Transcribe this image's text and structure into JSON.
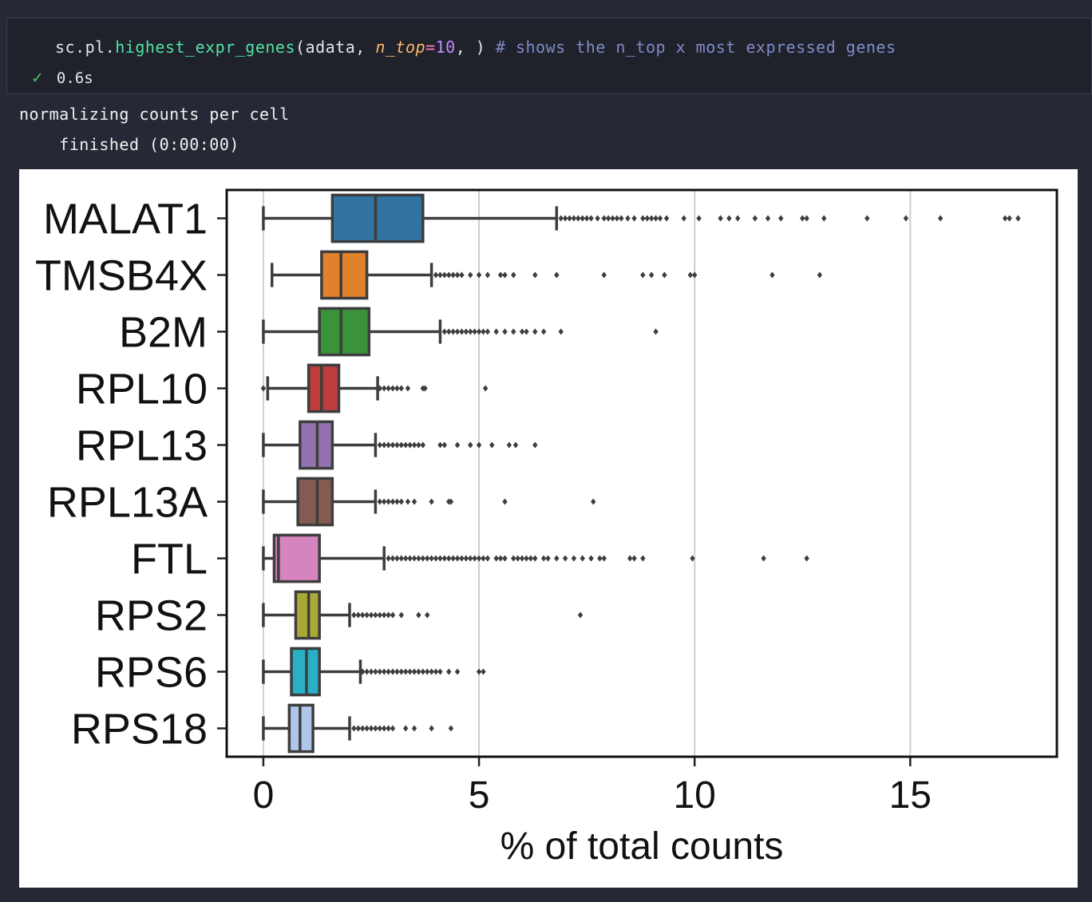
{
  "cell": {
    "code": {
      "prefix": "sc.pl.",
      "function": "highest_expr_genes",
      "open": "(adata, ",
      "param": "n_top",
      "equals": "=",
      "value": "10",
      "close": ", ) ",
      "comment": "# shows the n_top x most expressed genes"
    },
    "status_icon": "check-icon",
    "exec_time": "0.6s"
  },
  "output": {
    "line1": "normalizing counts per cell",
    "line2": "    finished (0:00:00)"
  },
  "chart_data": {
    "type": "box",
    "xlabel": "% of total counts",
    "xlim": [
      -0.85,
      18.4
    ],
    "xticks": [
      0,
      5,
      10,
      15
    ],
    "xtick_labels": [
      "0",
      "5",
      "10",
      "15"
    ],
    "grid": "vertical",
    "categories": [
      "MALAT1",
      "TMSB4X",
      "B2M",
      "RPL10",
      "RPL13",
      "RPL13A",
      "FTL",
      "RPS2",
      "RPS6",
      "RPS18"
    ],
    "boxes": [
      {
        "gene": "MALAT1",
        "color": "#3274a1",
        "whisker_low": 0.0,
        "q1": 1.6,
        "median": 2.6,
        "q3": 3.7,
        "whisker_high": 6.8,
        "outliers": [
          6.9,
          7.0,
          7.1,
          7.2,
          7.3,
          7.4,
          7.5,
          7.6,
          7.75,
          7.9,
          8.0,
          8.1,
          8.2,
          8.3,
          8.45,
          8.6,
          8.8,
          8.9,
          9.0,
          9.1,
          9.2,
          9.35,
          9.75,
          10.1,
          10.6,
          10.8,
          11.0,
          11.4,
          11.7,
          12.0,
          12.5,
          12.6,
          13.0,
          14.0,
          14.9,
          15.7,
          17.2,
          17.3,
          17.5
        ]
      },
      {
        "gene": "TMSB4X",
        "color": "#e1812c",
        "whisker_low": 0.2,
        "q1": 1.35,
        "median": 1.8,
        "q3": 2.4,
        "whisker_high": 3.9,
        "outliers": [
          4.0,
          4.1,
          4.2,
          4.3,
          4.4,
          4.5,
          4.6,
          4.8,
          5.0,
          5.2,
          5.5,
          5.6,
          5.8,
          6.3,
          6.8,
          7.9,
          8.8,
          9.0,
          9.3,
          9.9,
          10.0,
          11.8,
          12.9
        ]
      },
      {
        "gene": "B2M",
        "color": "#3a923a",
        "whisker_low": 0.0,
        "q1": 1.3,
        "median": 1.8,
        "q3": 2.45,
        "whisker_high": 4.1,
        "outliers": [
          4.2,
          4.3,
          4.4,
          4.5,
          4.6,
          4.7,
          4.8,
          4.9,
          5.0,
          5.1,
          5.2,
          5.4,
          5.6,
          5.8,
          6.0,
          6.1,
          6.3,
          6.5,
          6.9,
          9.1
        ]
      },
      {
        "gene": "RPL10",
        "color": "#c03d3e",
        "whisker_low": 0.1,
        "q1": 1.05,
        "median": 1.35,
        "q3": 1.75,
        "whisker_high": 2.65,
        "outliers": [
          0.0,
          2.7,
          2.8,
          2.9,
          3.0,
          3.1,
          3.2,
          3.35,
          3.7,
          3.75,
          5.15
        ]
      },
      {
        "gene": "RPL13",
        "color": "#9372b2",
        "whisker_low": 0.0,
        "q1": 0.85,
        "median": 1.25,
        "q3": 1.6,
        "whisker_high": 2.6,
        "outliers": [
          2.7,
          2.8,
          2.9,
          3.0,
          3.1,
          3.2,
          3.3,
          3.4,
          3.5,
          3.6,
          3.7,
          4.1,
          4.2,
          4.5,
          4.8,
          5.0,
          5.3,
          5.7,
          5.85,
          6.3
        ]
      },
      {
        "gene": "RPL13A",
        "color": "#845b53",
        "whisker_low": 0.0,
        "q1": 0.8,
        "median": 1.25,
        "q3": 1.6,
        "whisker_high": 2.6,
        "outliers": [
          2.7,
          2.8,
          2.9,
          3.0,
          3.1,
          3.2,
          3.35,
          3.5,
          3.9,
          4.3,
          4.35,
          5.6,
          7.65
        ]
      },
      {
        "gene": "FTL",
        "color": "#d684bd",
        "whisker_low": 0.0,
        "q1": 0.25,
        "median": 0.35,
        "q3": 1.3,
        "whisker_high": 2.8,
        "outliers": [
          2.9,
          3.0,
          3.1,
          3.2,
          3.3,
          3.4,
          3.5,
          3.6,
          3.7,
          3.8,
          3.9,
          4.0,
          4.1,
          4.2,
          4.3,
          4.4,
          4.5,
          4.6,
          4.7,
          4.8,
          4.9,
          5.0,
          5.1,
          5.2,
          5.4,
          5.5,
          5.6,
          5.8,
          5.9,
          6.0,
          6.1,
          6.2,
          6.3,
          6.5,
          6.6,
          6.8,
          7.0,
          7.2,
          7.4,
          7.6,
          7.8,
          7.9,
          8.5,
          8.6,
          8.8,
          9.95,
          11.6,
          12.6
        ]
      },
      {
        "gene": "RPS2",
        "color": "#a9aa35",
        "whisker_low": 0.0,
        "q1": 0.75,
        "median": 1.05,
        "q3": 1.3,
        "whisker_high": 2.0,
        "outliers": [
          2.1,
          2.2,
          2.3,
          2.4,
          2.5,
          2.6,
          2.7,
          2.8,
          2.9,
          3.0,
          3.2,
          3.6,
          3.8,
          7.35
        ]
      },
      {
        "gene": "RPS6",
        "color": "#2ab0c5",
        "whisker_low": 0.0,
        "q1": 0.65,
        "median": 1.0,
        "q3": 1.3,
        "whisker_high": 2.25,
        "outliers": [
          2.3,
          2.4,
          2.5,
          2.6,
          2.7,
          2.8,
          2.9,
          3.0,
          3.1,
          3.2,
          3.3,
          3.4,
          3.5,
          3.6,
          3.7,
          3.8,
          3.9,
          4.0,
          4.1,
          4.3,
          4.5,
          5.0,
          5.1
        ]
      },
      {
        "gene": "RPS18",
        "color": "#aec7e8",
        "whisker_low": 0.0,
        "q1": 0.6,
        "median": 0.85,
        "q3": 1.15,
        "whisker_high": 2.0,
        "outliers": [
          2.1,
          2.2,
          2.3,
          2.4,
          2.5,
          2.6,
          2.7,
          2.8,
          2.9,
          3.0,
          3.3,
          3.5,
          3.9,
          4.35
        ]
      }
    ]
  }
}
